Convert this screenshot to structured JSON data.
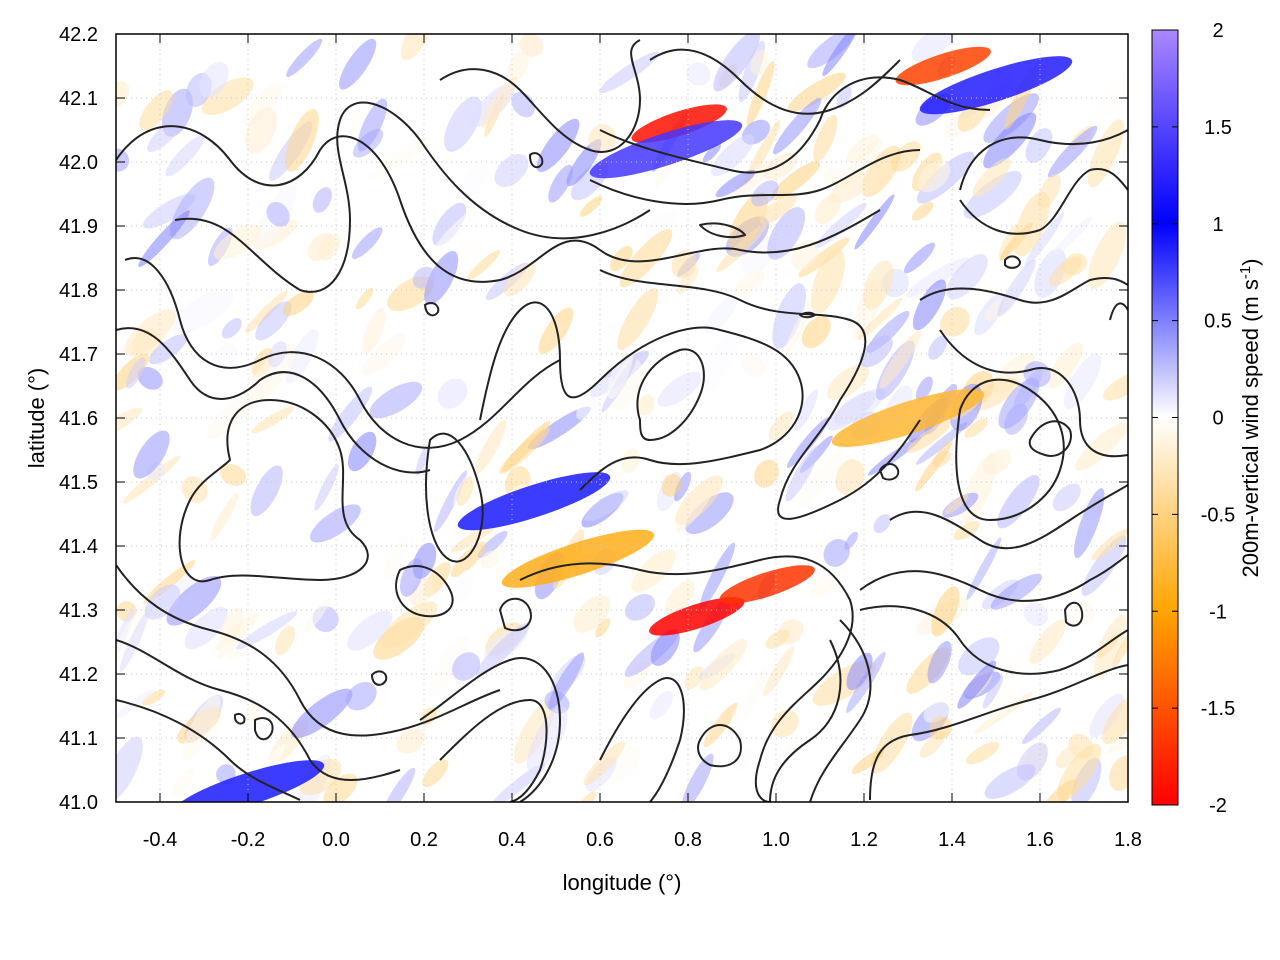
{
  "chart_data": {
    "type": "heatmap",
    "xlabel": "longitude (°)",
    "ylabel": "latitude (°)",
    "colorbar_label": "200m-vertical wind speed (m s-1)",
    "colorbar_label_parts": {
      "main": "200m-vertical wind speed (m s",
      "sup": "-1",
      "close": ")"
    },
    "xlim": [
      -0.5,
      1.8
    ],
    "ylim": [
      41.0,
      42.2
    ],
    "clim": [
      -2,
      2
    ],
    "x_ticks": [
      "-0.4",
      "-0.2",
      "0.0",
      "0.2",
      "0.4",
      "0.6",
      "0.8",
      "1.0",
      "1.2",
      "1.4",
      "1.6",
      "1.8"
    ],
    "x_tick_values": [
      -0.4,
      -0.2,
      0.0,
      0.2,
      0.4,
      0.6,
      0.8,
      1.0,
      1.2,
      1.4,
      1.6,
      1.8
    ],
    "y_ticks": [
      "41.0",
      "41.1",
      "41.2",
      "41.3",
      "41.4",
      "41.5",
      "41.6",
      "41.7",
      "41.8",
      "41.9",
      "42.0",
      "42.1",
      "42.2"
    ],
    "y_tick_values": [
      41.0,
      41.1,
      41.2,
      41.3,
      41.4,
      41.5,
      41.6,
      41.7,
      41.8,
      41.9,
      42.0,
      42.1,
      42.2
    ],
    "colorbar_ticks": [
      "2",
      "1.5",
      "1",
      "0.5",
      "0",
      "-0.5",
      "-1",
      "-1.5",
      "-2"
    ],
    "colorbar_tick_values": [
      2,
      1.5,
      1,
      0.5,
      0,
      -0.5,
      -1,
      -1.5,
      -2
    ],
    "colormap": [
      {
        "value": -2,
        "color": "#ff0000"
      },
      {
        "value": -1,
        "color": "#ffa500"
      },
      {
        "value": 0,
        "color": "#ffffff"
      },
      {
        "value": 1,
        "color": "#0000ff"
      },
      {
        "value": 2,
        "color": "#aa88ff"
      }
    ],
    "grid": true,
    "contour_color": "#222222",
    "features": [
      {
        "name": "negative-max-north",
        "lon": 0.78,
        "lat": 42.06,
        "value": -1.9
      },
      {
        "name": "negative-max-center-south",
        "lon": 0.82,
        "lat": 41.29,
        "value": -2.0
      },
      {
        "name": "negative-band-south",
        "lon": 0.98,
        "lat": 41.34,
        "value": -1.7
      },
      {
        "name": "negative-northeast",
        "lon": 1.38,
        "lat": 42.15,
        "value": -1.6
      },
      {
        "name": "negative-southwest-band",
        "lon": 0.55,
        "lat": 41.38,
        "value": -0.9
      },
      {
        "name": "negative-east",
        "lon": 1.3,
        "lat": 41.6,
        "value": -0.8
      },
      {
        "name": "positive-north",
        "lon": 0.75,
        "lat": 42.02,
        "value": 1.4
      },
      {
        "name": "positive-northeast",
        "lon": 1.5,
        "lat": 42.12,
        "value": 1.2
      },
      {
        "name": "positive-central-band",
        "lon": 0.45,
        "lat": 41.47,
        "value": 0.9
      },
      {
        "name": "positive-south-strip",
        "lon": -0.2,
        "lat": 41.02,
        "value": 0.9
      }
    ]
  }
}
